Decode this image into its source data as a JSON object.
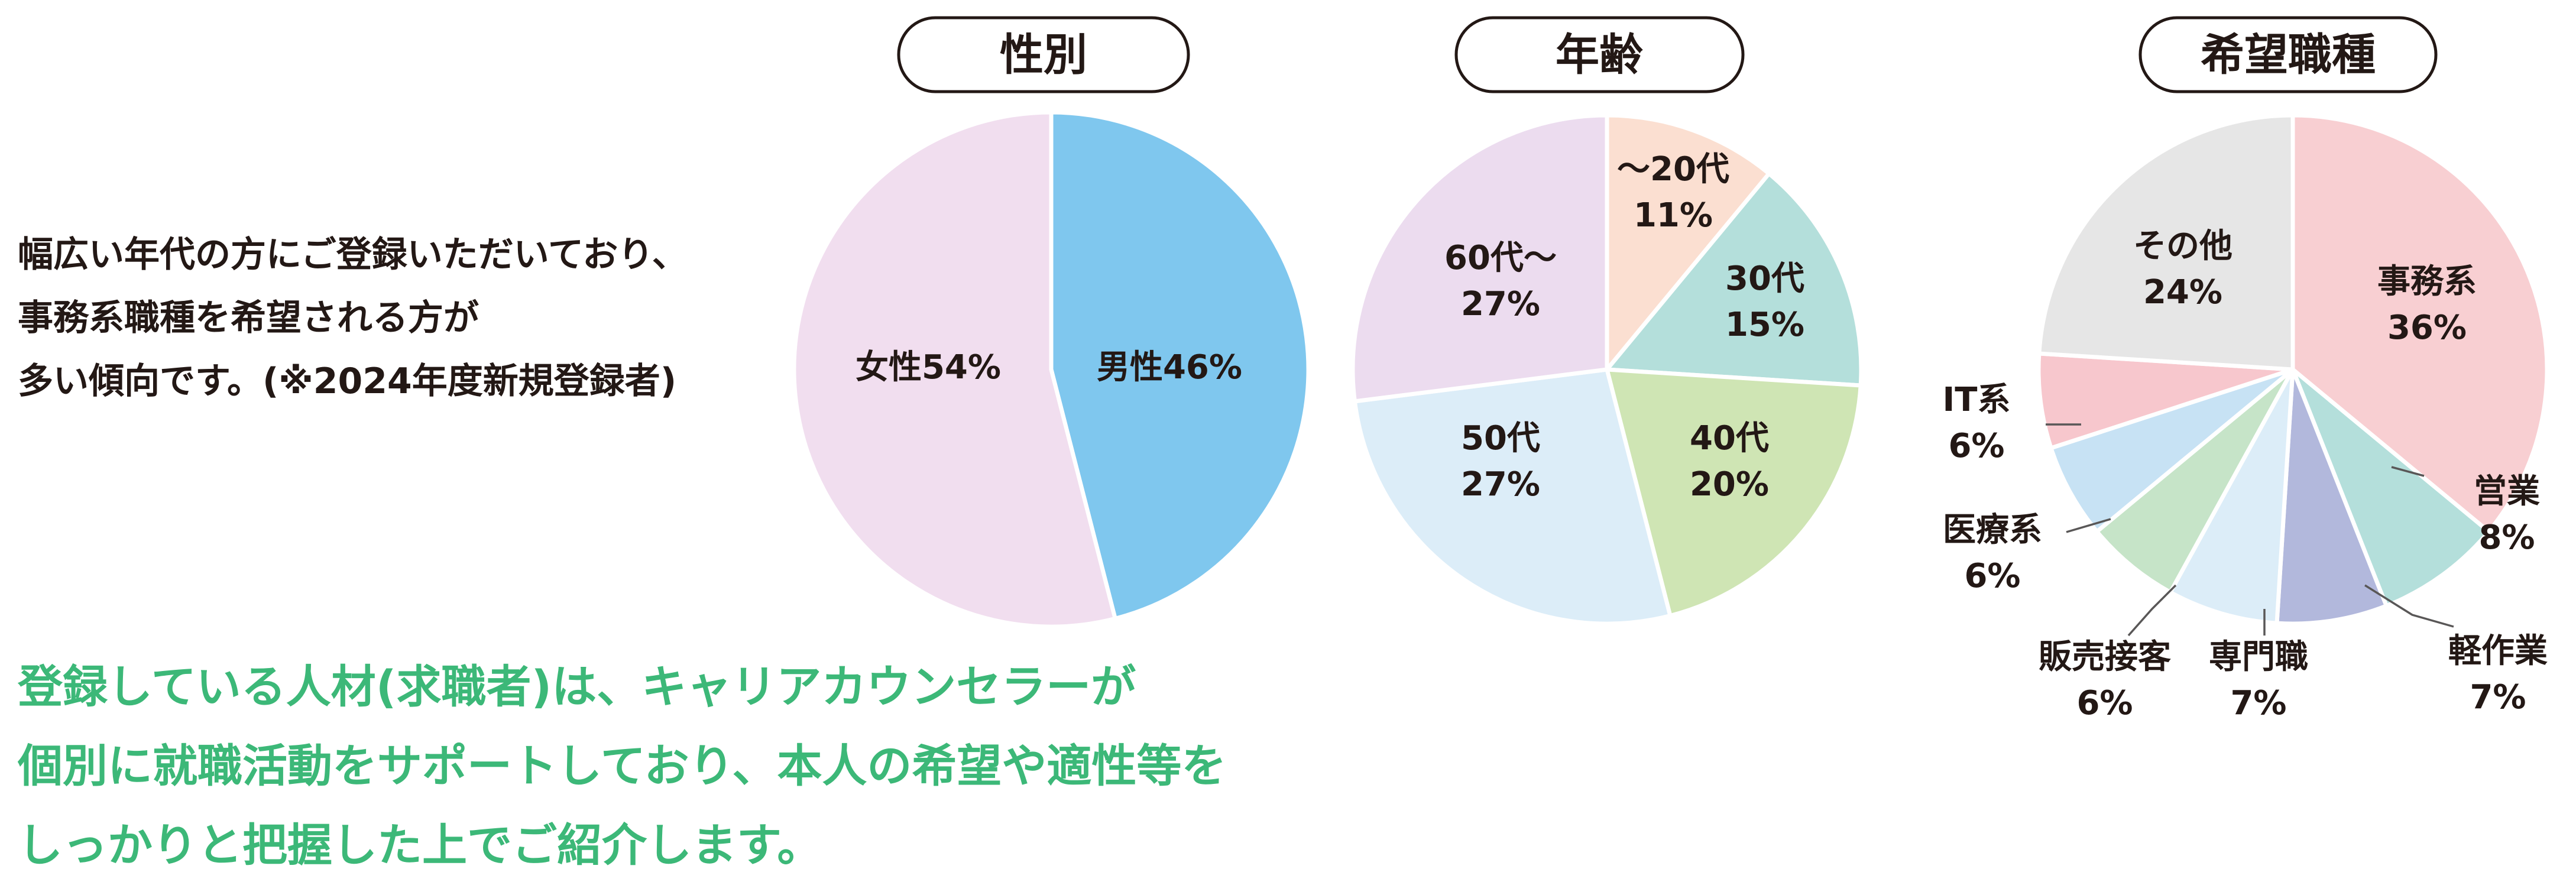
{
  "intro": {
    "lines": [
      "幅広い年代の方にご登録いただいており、",
      "事務系職種を希望される方が",
      "多い傾向です。(※2024年度新規登録者)"
    ]
  },
  "note": {
    "lines": [
      "登録している人材(求職者)は、キャリアカウンセラーが",
      "個別に就職活動をサポートしており、本人の希望や適性等を",
      "しっかりと把握した上でご紹介します。"
    ]
  },
  "chart_data": [
    {
      "type": "pie",
      "title": "性別",
      "unit": "%",
      "categories": [
        "男性",
        "女性"
      ],
      "values": [
        46,
        54
      ],
      "colors": [
        "#7fc7ee",
        "#f1deef"
      ],
      "start_angle_deg": 0,
      "direction": "clockwise"
    },
    {
      "type": "pie",
      "title": "年齢",
      "unit": "%",
      "categories": [
        "〜20代",
        "30代",
        "40代",
        "50代",
        "60代〜"
      ],
      "values": [
        11,
        15,
        20,
        27,
        27
      ],
      "colors": [
        "#fbdfd1",
        "#b4dfdb",
        "#cfe5b4",
        "#dcedf8",
        "#ecdcef"
      ],
      "start_angle_deg": 0,
      "direction": "clockwise"
    },
    {
      "type": "pie",
      "title": "希望職種",
      "unit": "%",
      "categories": [
        "事務系",
        "営業",
        "軽作業",
        "専門職",
        "販売接客",
        "医療系",
        "IT系",
        "その他"
      ],
      "values": [
        36,
        8,
        7,
        7,
        6,
        6,
        6,
        24
      ],
      "colors": [
        "#f8cfd2",
        "#b4dfdb",
        "#b2b8dc",
        "#dcedf8",
        "#c6e4c8",
        "#c7e2f4",
        "#f7c7cd",
        "#e6e6e6"
      ],
      "start_angle_deg": 0,
      "direction": "clockwise"
    }
  ]
}
